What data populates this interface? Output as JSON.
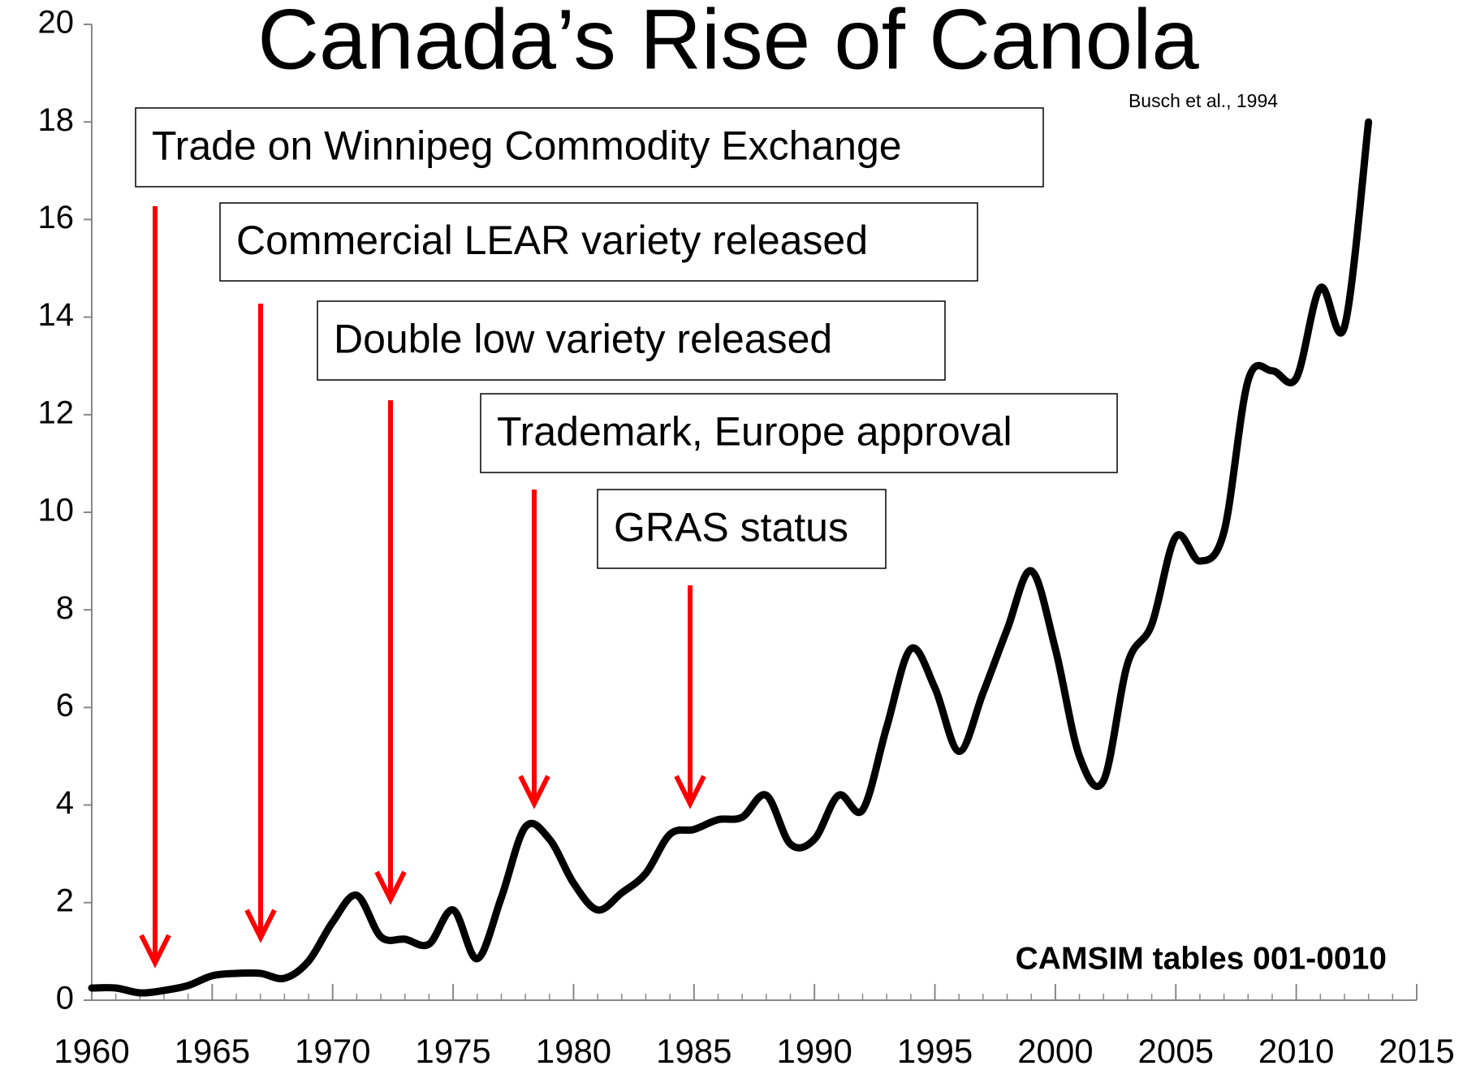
{
  "chart_data": {
    "type": "line",
    "title": "Canada’s Rise of Canola",
    "citation": "Busch et al., 1994",
    "source": "CAMSIM tables 001-0010",
    "annotations": [
      "Trade on Winnipeg Commodity Exchange",
      "Commercial LEAR variety released",
      "Double low variety released",
      "Trademark, Europe approval",
      "GRAS status"
    ],
    "x": [
      1960,
      1961,
      1962,
      1963,
      1964,
      1965,
      1966,
      1967,
      1968,
      1969,
      1970,
      1971,
      1972,
      1973,
      1974,
      1975,
      1976,
      1977,
      1978,
      1979,
      1980,
      1981,
      1982,
      1983,
      1984,
      1985,
      1986,
      1987,
      1988,
      1989,
      1990,
      1991,
      1992,
      1993,
      1994,
      1995,
      1996,
      1997,
      1998,
      1999,
      2000,
      2001,
      2002,
      2003,
      2004,
      2005,
      2006,
      2007,
      2008,
      2009,
      2010,
      2011,
      2012,
      2013
    ],
    "series": [
      {
        "color": "#000000",
        "values": [
          0.25,
          0.25,
          0.15,
          0.2,
          0.3,
          0.5,
          0.55,
          0.55,
          0.45,
          0.8,
          1.6,
          2.15,
          1.3,
          1.25,
          1.15,
          1.85,
          0.85,
          2.1,
          3.55,
          3.3,
          2.4,
          1.85,
          2.2,
          2.6,
          3.4,
          3.5,
          3.7,
          3.75,
          4.2,
          3.2,
          3.3,
          4.2,
          3.9,
          5.6,
          7.2,
          6.4,
          5.1,
          6.3,
          7.6,
          8.8,
          7.2,
          5.0,
          4.5,
          6.9,
          7.7,
          9.5,
          9.0,
          9.6,
          12.7,
          12.9,
          12.75,
          14.6,
          13.8,
          18.0
        ]
      }
    ],
    "xlim": [
      1960,
      2015
    ],
    "xticks": [
      1960,
      1965,
      1970,
      1975,
      1980,
      1985,
      1990,
      1995,
      2000,
      2005,
      2010,
      2015
    ],
    "ylim": [
      0,
      20
    ],
    "yticks": [
      0,
      2,
      4,
      6,
      8,
      10,
      12,
      14,
      16,
      18,
      20
    ],
    "arrow_color": "#ff0000"
  }
}
